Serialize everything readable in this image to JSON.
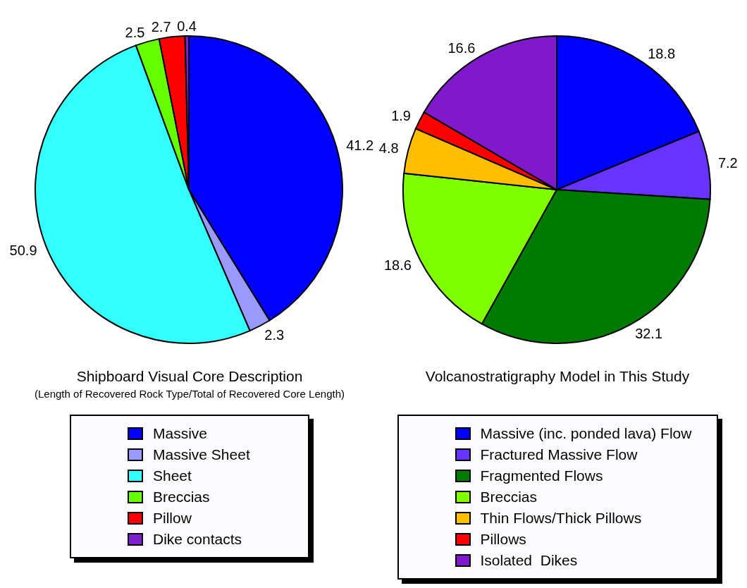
{
  "chart_data": [
    {
      "type": "pie",
      "title": "Shipboard Visual Core Description",
      "subtitle": "(Length of Recovered Rock Type/Total of Recovered Core Length)",
      "categories": [
        "Massive",
        "Massive Sheet",
        "Sheet",
        "Breccias",
        "Pillow",
        "Dike contacts"
      ],
      "values": [
        41.2,
        2.3,
        50.9,
        2.5,
        2.7,
        0.4
      ],
      "colors": [
        "#0000ff",
        "#9999ff",
        "#33ffff",
        "#66ff00",
        "#ff0000",
        "#7f1fd0"
      ],
      "data_labels": true,
      "legend": "bottom"
    },
    {
      "type": "pie",
      "title": "Volcanostratigraphy Model in This Study",
      "categories": [
        "Massive (inc. ponded lava) Flow",
        "Fractured Massive Flow",
        "Fragmented Flows",
        "Breccias",
        "Thin Flows/Thick Pillows",
        "Pillows",
        "Isolated  Dikes"
      ],
      "values": [
        18.8,
        7.2,
        32.1,
        18.6,
        4.8,
        1.9,
        16.6
      ],
      "colors": [
        "#0000ff",
        "#6633ff",
        "#007a00",
        "#7fff00",
        "#ffbf00",
        "#ff0000",
        "#8019cc"
      ],
      "data_labels": true,
      "legend": "bottom"
    }
  ]
}
